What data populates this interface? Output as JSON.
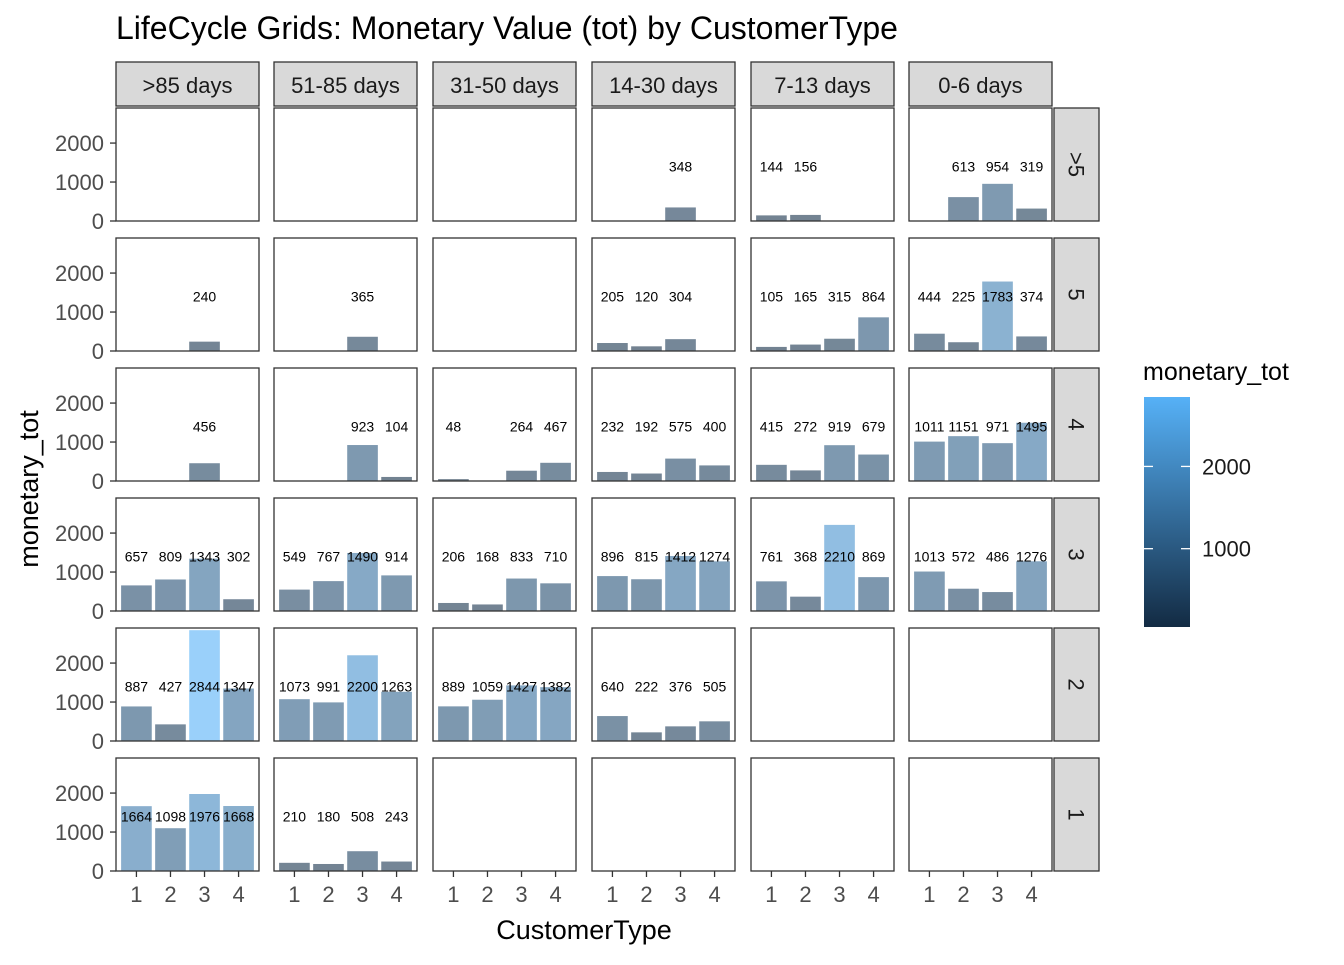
{
  "chart_data": {
    "type": "bar",
    "title": "LifeCycle Grids: Monetary Value (tot) by CustomerType",
    "xlabel": "CustomerType",
    "ylabel": "monetary_tot",
    "categories": [
      "1",
      "2",
      "3",
      "4"
    ],
    "ylim": [
      0,
      2900
    ],
    "yticks": [
      0,
      1000,
      2000
    ],
    "column_facets": [
      ">85 days",
      "51-85 days",
      "31-50 days",
      "14-30 days",
      "7-13 days",
      "0-6 days"
    ],
    "row_facets": [
      ">5",
      "5",
      "4",
      "3",
      "2",
      "1"
    ],
    "legend": {
      "title": "monetary_tot",
      "ticks": [
        1000,
        2000
      ],
      "color_low": "#132B43",
      "color_high": "#56B1F7",
      "range": [
        48,
        2844
      ],
      "placement": "right"
    },
    "bar_alpha": 0.6,
    "panels": [
      {
        "row": ">5",
        "col": ">85 days",
        "values": [
          null,
          null,
          null,
          null
        ]
      },
      {
        "row": ">5",
        "col": "51-85 days",
        "values": [
          null,
          null,
          null,
          null
        ]
      },
      {
        "row": ">5",
        "col": "31-50 days",
        "values": [
          null,
          null,
          null,
          null
        ]
      },
      {
        "row": ">5",
        "col": "14-30 days",
        "values": [
          null,
          null,
          348,
          null
        ]
      },
      {
        "row": ">5",
        "col": "7-13 days",
        "values": [
          144,
          156,
          null,
          null
        ]
      },
      {
        "row": ">5",
        "col": "0-6 days",
        "values": [
          null,
          613,
          954,
          319
        ]
      },
      {
        "row": "5",
        "col": ">85 days",
        "values": [
          null,
          null,
          240,
          null
        ]
      },
      {
        "row": "5",
        "col": "51-85 days",
        "values": [
          null,
          null,
          365,
          null
        ]
      },
      {
        "row": "5",
        "col": "31-50 days",
        "values": [
          null,
          null,
          null,
          null
        ]
      },
      {
        "row": "5",
        "col": "14-30 days",
        "values": [
          205,
          120,
          304,
          null
        ]
      },
      {
        "row": "5",
        "col": "7-13 days",
        "values": [
          105,
          165,
          315,
          864
        ]
      },
      {
        "row": "5",
        "col": "0-6 days",
        "values": [
          444,
          225,
          1783,
          374
        ]
      },
      {
        "row": "4",
        "col": ">85 days",
        "values": [
          null,
          null,
          456,
          null
        ]
      },
      {
        "row": "4",
        "col": "51-85 days",
        "values": [
          null,
          null,
          923,
          104
        ]
      },
      {
        "row": "4",
        "col": "31-50 days",
        "values": [
          48,
          null,
          264,
          467
        ]
      },
      {
        "row": "4",
        "col": "14-30 days",
        "values": [
          232,
          192,
          575,
          400
        ]
      },
      {
        "row": "4",
        "col": "7-13 days",
        "values": [
          415,
          272,
          919,
          679
        ]
      },
      {
        "row": "4",
        "col": "0-6 days",
        "values": [
          1011,
          1151,
          971,
          1495
        ]
      },
      {
        "row": "3",
        "col": ">85 days",
        "values": [
          657,
          809,
          1343,
          302
        ]
      },
      {
        "row": "3",
        "col": "51-85 days",
        "values": [
          549,
          767,
          1490,
          914
        ]
      },
      {
        "row": "3",
        "col": "31-50 days",
        "values": [
          206,
          168,
          833,
          710
        ]
      },
      {
        "row": "3",
        "col": "14-30 days",
        "values": [
          896,
          815,
          1412,
          1274
        ]
      },
      {
        "row": "3",
        "col": "7-13 days",
        "values": [
          761,
          368,
          2210,
          869
        ]
      },
      {
        "row": "3",
        "col": "0-6 days",
        "values": [
          1013,
          572,
          486,
          1276
        ]
      },
      {
        "row": "2",
        "col": ">85 days",
        "values": [
          887,
          427,
          2844,
          1347
        ]
      },
      {
        "row": "2",
        "col": "51-85 days",
        "values": [
          1073,
          991,
          2200,
          1263
        ]
      },
      {
        "row": "2",
        "col": "31-50 days",
        "values": [
          889,
          1059,
          1427,
          1382
        ]
      },
      {
        "row": "2",
        "col": "14-30 days",
        "values": [
          640,
          222,
          376,
          505
        ]
      },
      {
        "row": "2",
        "col": "7-13 days",
        "values": [
          null,
          null,
          null,
          null
        ]
      },
      {
        "row": "2",
        "col": "0-6 days",
        "values": [
          null,
          null,
          null,
          null
        ]
      },
      {
        "row": "1",
        "col": ">85 days",
        "values": [
          1664,
          1098,
          1976,
          1668
        ]
      },
      {
        "row": "1",
        "col": "51-85 days",
        "values": [
          210,
          180,
          508,
          243
        ]
      },
      {
        "row": "1",
        "col": "31-50 days",
        "values": [
          null,
          null,
          null,
          null
        ]
      },
      {
        "row": "1",
        "col": "14-30 days",
        "values": [
          null,
          null,
          null,
          null
        ]
      },
      {
        "row": "1",
        "col": "7-13 days",
        "values": [
          null,
          null,
          null,
          null
        ]
      },
      {
        "row": "1",
        "col": "0-6 days",
        "values": [
          null,
          null,
          null,
          null
        ]
      }
    ]
  }
}
